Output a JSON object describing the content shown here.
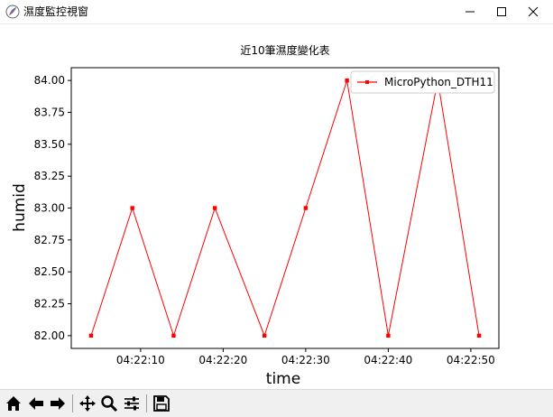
{
  "window": {
    "title": "濕度監控視窗",
    "icons": {
      "app": "feather-icon",
      "minimize": "minimize-icon",
      "maximize": "maximize-icon",
      "close": "close-icon"
    }
  },
  "toolbar": {
    "buttons": [
      {
        "name": "home",
        "icon": "home-icon"
      },
      {
        "name": "back",
        "icon": "arrow-left-icon"
      },
      {
        "name": "forward",
        "icon": "arrow-right-icon"
      },
      {
        "name": "pan",
        "icon": "move-icon"
      },
      {
        "name": "zoom",
        "icon": "zoom-icon"
      },
      {
        "name": "configure-subplots",
        "icon": "sliders-icon"
      },
      {
        "name": "save",
        "icon": "save-icon"
      }
    ]
  },
  "chart_data": {
    "type": "line",
    "title": "近10筆濕度變化表",
    "xlabel": "time",
    "ylabel": "humid",
    "x": [
      "04:22:04",
      "04:22:09",
      "04:22:14",
      "04:22:19",
      "04:22:25",
      "04:22:30",
      "04:22:35",
      "04:22:40",
      "04:22:46",
      "04:22:51"
    ],
    "series": [
      {
        "name": "MicroPython_DTH11",
        "values": [
          82.0,
          83.0,
          82.0,
          83.0,
          82.0,
          83.0,
          84.0,
          82.0,
          84.0,
          82.0
        ]
      }
    ],
    "x_ticks": [
      "04:22:10",
      "04:22:20",
      "04:22:30",
      "04:22:40",
      "04:22:50"
    ],
    "y_ticks": [
      "82.00",
      "82.25",
      "82.50",
      "82.75",
      "83.00",
      "83.25",
      "83.50",
      "83.75",
      "84.00"
    ],
    "ylim": [
      81.9,
      84.1
    ],
    "legend_position": "top-right",
    "grid": false,
    "colors": {
      "line": "#ff0000",
      "axes": "#000000",
      "background": "#ffffff"
    }
  }
}
